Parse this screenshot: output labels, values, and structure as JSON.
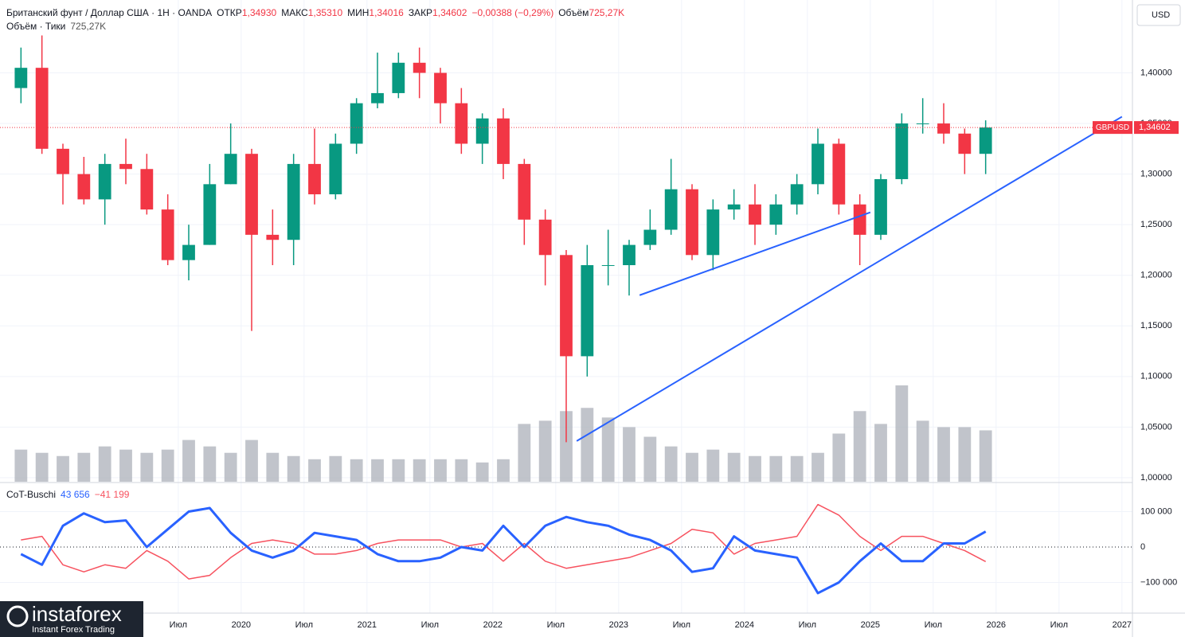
{
  "header": {
    "instrument": "Британский фунт / Доллар США · 1Н · OANDA",
    "ohlc": [
      {
        "label": "ОТКР",
        "value": "1,34930"
      },
      {
        "label": "МАКС",
        "value": "1,35310"
      },
      {
        "label": "МИН",
        "value": "1,34016"
      },
      {
        "label": "ЗАКР",
        "value": "1,34602"
      }
    ],
    "change": "−0,00388 (−0,29%)",
    "volume_label": "Объём",
    "volume": "725,27K",
    "volume_study": "Объём · Тики",
    "volume_study_value": "725,27K",
    "currency": "USD"
  },
  "logo": {
    "name": "instaforex",
    "tagline": "Instant Forex Trading"
  },
  "chart_data": {
    "type": "candlestick",
    "x": [
      "2018-03",
      "2018-05",
      "2018-07",
      "2018-09",
      "2018-11",
      "2019-01",
      "2019-03",
      "2019-05",
      "2019-07",
      "2019-09",
      "2019-11",
      "2020-01",
      "2020-03",
      "2020-05",
      "2020-07",
      "2020-09",
      "2020-11",
      "2021-01",
      "2021-03",
      "2021-05",
      "2021-07",
      "2021-09",
      "2021-11",
      "2022-01",
      "2022-03",
      "2022-05",
      "2022-07",
      "2022-09",
      "2022-11",
      "2023-01",
      "2023-03",
      "2023-05",
      "2023-07",
      "2023-09",
      "2023-11",
      "2024-01",
      "2024-03",
      "2024-05",
      "2024-07",
      "2024-09",
      "2024-11",
      "2025-01",
      "2025-03",
      "2025-05",
      "2025-07",
      "2025-09",
      "2025-11"
    ],
    "open": [
      1.385,
      1.405,
      1.325,
      1.3,
      1.275,
      1.31,
      1.305,
      1.265,
      1.215,
      1.23,
      1.29,
      1.32,
      1.24,
      1.235,
      1.31,
      1.28,
      1.33,
      1.37,
      1.38,
      1.41,
      1.4,
      1.37,
      1.33,
      1.355,
      1.31,
      1.255,
      1.22,
      1.12,
      1.21,
      1.21,
      1.23,
      1.245,
      1.285,
      1.22,
      1.265,
      1.27,
      1.25,
      1.27,
      1.29,
      1.33,
      1.27,
      1.24,
      1.295,
      1.35,
      1.35,
      1.34,
      1.32
    ],
    "high": [
      1.425,
      1.437,
      1.33,
      1.317,
      1.32,
      1.335,
      1.32,
      1.28,
      1.25,
      1.31,
      1.35,
      1.325,
      1.265,
      1.32,
      1.345,
      1.34,
      1.375,
      1.42,
      1.42,
      1.425,
      1.405,
      1.385,
      1.36,
      1.365,
      1.315,
      1.265,
      1.225,
      1.23,
      1.245,
      1.235,
      1.265,
      1.315,
      1.29,
      1.275,
      1.285,
      1.29,
      1.28,
      1.3,
      1.345,
      1.335,
      1.28,
      1.3,
      1.36,
      1.375,
      1.37,
      1.345,
      1.3531
    ],
    "low": [
      1.37,
      1.32,
      1.27,
      1.27,
      1.25,
      1.29,
      1.26,
      1.21,
      1.195,
      1.23,
      1.29,
      1.145,
      1.21,
      1.21,
      1.27,
      1.275,
      1.32,
      1.365,
      1.375,
      1.375,
      1.35,
      1.32,
      1.31,
      1.295,
      1.23,
      1.19,
      1.035,
      1.1,
      1.19,
      1.18,
      1.225,
      1.24,
      1.215,
      1.205,
      1.255,
      1.23,
      1.24,
      1.26,
      1.28,
      1.26,
      1.21,
      1.235,
      1.29,
      1.34,
      1.33,
      1.3,
      1.3
    ],
    "close": [
      1.405,
      1.325,
      1.3,
      1.275,
      1.31,
      1.305,
      1.265,
      1.215,
      1.23,
      1.29,
      1.32,
      1.24,
      1.235,
      1.31,
      1.28,
      1.33,
      1.37,
      1.38,
      1.41,
      1.4,
      1.37,
      1.33,
      1.355,
      1.31,
      1.255,
      1.22,
      1.12,
      1.21,
      1.21,
      1.23,
      1.245,
      1.285,
      1.22,
      1.265,
      1.27,
      1.25,
      1.27,
      1.29,
      1.33,
      1.27,
      1.24,
      1.295,
      1.35,
      1.35,
      1.34,
      1.32,
      1.34602
    ],
    "up_color": "#089981",
    "down_color": "#f23645",
    "xlim": [
      "2018-02",
      "2027-02"
    ],
    "xticks": [
      {
        "value": "2019-07",
        "label": "Июл"
      },
      {
        "value": "2020-01",
        "label": "2020"
      },
      {
        "value": "2020-07",
        "label": "Июл"
      },
      {
        "value": "2021-01",
        "label": "2021"
      },
      {
        "value": "2021-07",
        "label": "Июл"
      },
      {
        "value": "2022-01",
        "label": "2022"
      },
      {
        "value": "2022-07",
        "label": "Июл"
      },
      {
        "value": "2023-01",
        "label": "2023"
      },
      {
        "value": "2023-07",
        "label": "Июл"
      },
      {
        "value": "2024-01",
        "label": "2024"
      },
      {
        "value": "2024-07",
        "label": "Июл"
      },
      {
        "value": "2025-01",
        "label": "2025"
      },
      {
        "value": "2025-07",
        "label": "Июл"
      },
      {
        "value": "2026-01",
        "label": "2026"
      },
      {
        "value": "2026-07",
        "label": "Июл"
      },
      {
        "value": "2027-01",
        "label": "2027"
      }
    ],
    "ylim": [
      0.996,
      1.472
    ],
    "yticks": [
      {
        "value": 1.0,
        "label": "1,00000"
      },
      {
        "value": 1.05,
        "label": "1,05000"
      },
      {
        "value": 1.1,
        "label": "1,10000"
      },
      {
        "value": 1.15,
        "label": "1,15000"
      },
      {
        "value": 1.2,
        "label": "1,20000"
      },
      {
        "value": 1.25,
        "label": "1,25000"
      },
      {
        "value": 1.3,
        "label": "1,30000"
      },
      {
        "value": 1.35,
        "label": "1,35000"
      },
      {
        "value": 1.4,
        "label": "1,40000"
      }
    ],
    "grid": true,
    "last_price": {
      "name": "GBPUSD",
      "value": 1.34602,
      "label": "1,34602",
      "color": "#f23645"
    },
    "trendlines": [
      {
        "x": [
          "2022-09",
          "2027-01"
        ],
        "y": [
          1.0362,
          1.3567
        ],
        "color": "#2962ff"
      },
      {
        "x": [
          "2023-03",
          "2025-01"
        ],
        "y": [
          1.1803,
          1.2622
        ],
        "color": "#2962ff"
      }
    ],
    "volume": {
      "color": "#b2b5be",
      "ylim": [
        0,
        1500
      ],
      "values": [
        100,
        90,
        80,
        90,
        110,
        100,
        90,
        100,
        130,
        110,
        90,
        130,
        90,
        80,
        70,
        80,
        70,
        70,
        70,
        70,
        70,
        70,
        60,
        70,
        180,
        190,
        220,
        230,
        200,
        170,
        140,
        110,
        90,
        100,
        90,
        80,
        80,
        80,
        90,
        150,
        220,
        180,
        300,
        190,
        170,
        170,
        160
      ]
    },
    "indicator": {
      "title": "CoT-Buschi",
      "ylim": [
        -186500,
        177500
      ],
      "yticks": [
        {
          "value": 100000,
          "label": "100 000"
        },
        0,
        {
          "value": -100000,
          "label": "−100 000"
        }
      ],
      "series": [
        {
          "value_label": "43 656",
          "color": "#2962ff",
          "values": [
            -20000,
            -50000,
            60000,
            95000,
            70000,
            75000,
            0,
            50000,
            100000,
            110000,
            40000,
            -10000,
            -30000,
            -10000,
            40000,
            30000,
            20000,
            -20000,
            -40000,
            -40000,
            -30000,
            0,
            -10000,
            60000,
            0,
            60000,
            85000,
            70000,
            60000,
            35000,
            20000,
            -10000,
            -70000,
            -60000,
            30000,
            -10000,
            -20000,
            -30000,
            -130000,
            -100000,
            -40000,
            10000,
            -40000,
            -40000,
            10000,
            10000,
            43656
          ]
        },
        {
          "value_label": "−41 199",
          "color": "#f7525f",
          "values": [
            20000,
            30000,
            -50000,
            -70000,
            -50000,
            -60000,
            -10000,
            -40000,
            -90000,
            -80000,
            -30000,
            10000,
            20000,
            10000,
            -20000,
            -20000,
            -10000,
            10000,
            20000,
            20000,
            20000,
            0,
            10000,
            -40000,
            10000,
            -40000,
            -60000,
            -50000,
            -40000,
            -30000,
            -10000,
            10000,
            50000,
            40000,
            -20000,
            10000,
            20000,
            30000,
            120000,
            90000,
            30000,
            -10000,
            30000,
            30000,
            10000,
            -10000,
            -41199
          ]
        }
      ]
    }
  }
}
